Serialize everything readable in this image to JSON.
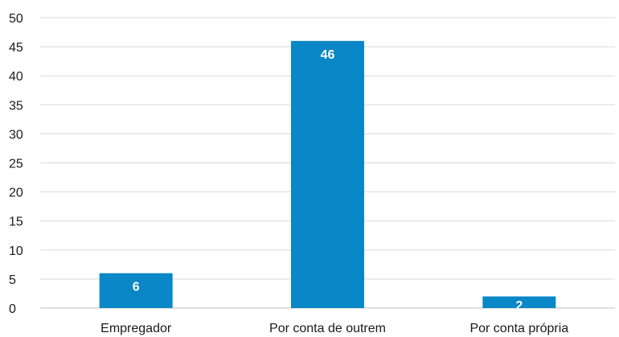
{
  "chart_data": {
    "type": "bar",
    "title": "",
    "xlabel": "",
    "ylabel": "",
    "categories": [
      "Empregador",
      "Por conta de outrem",
      "Por conta própria"
    ],
    "values": [
      6,
      46,
      2
    ],
    "ylim": [
      0,
      50
    ],
    "yticks": [
      0,
      5,
      10,
      15,
      20,
      25,
      30,
      35,
      40,
      45,
      50
    ],
    "grid": true,
    "legend": "none",
    "bar_color": "#0a87c7",
    "data_label_color": "#ffffff"
  }
}
